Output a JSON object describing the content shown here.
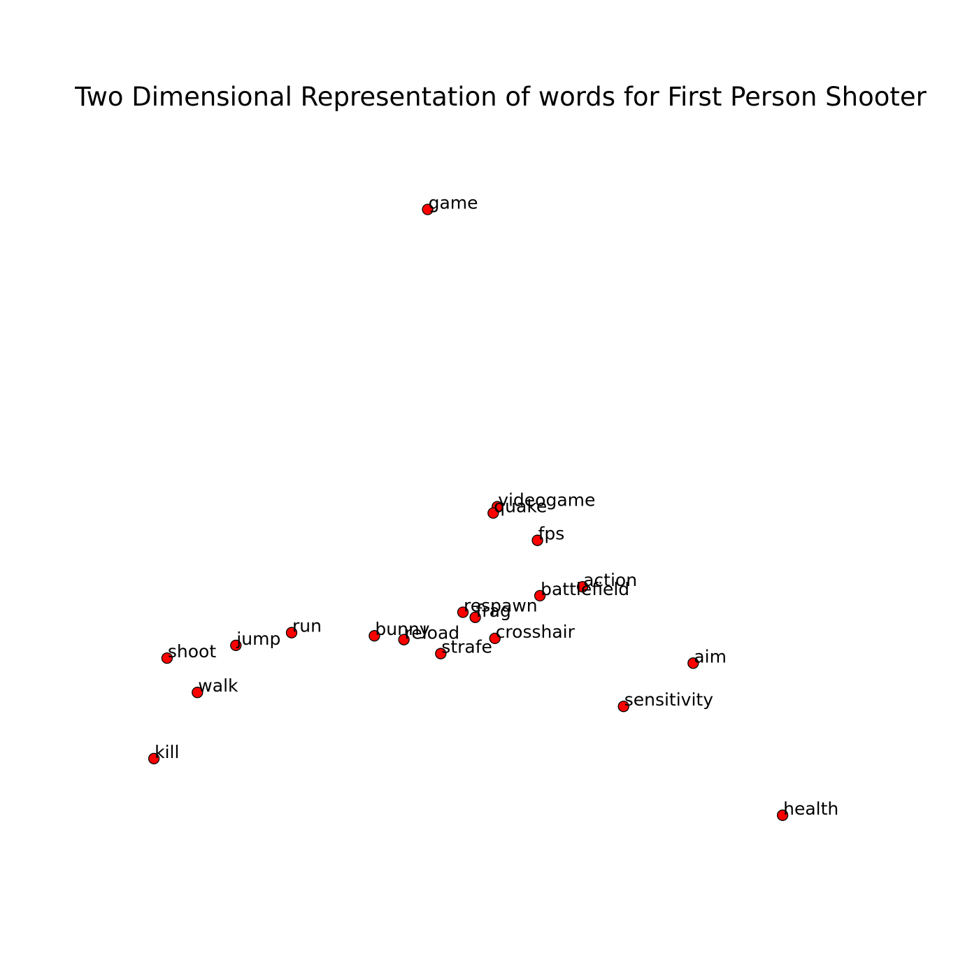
{
  "chart_data": {
    "type": "scatter",
    "title": "Two Dimensional Representation of words for First Person Shooter",
    "xlabel": "",
    "ylabel": "",
    "axes_visible": false,
    "grid": false,
    "xlim": [
      0,
      100
    ],
    "ylim": [
      0,
      100
    ],
    "marker_color": "#ff0000",
    "marker_edge_color": "#000000",
    "label_color": "#000000",
    "points": [
      {
        "label": "game",
        "x": 42.2,
        "y": 93.9
      },
      {
        "label": "videogame",
        "x": 50.7,
        "y": 47.2
      },
      {
        "label": "quake",
        "x": 50.2,
        "y": 46.2
      },
      {
        "label": "fps",
        "x": 55.6,
        "y": 41.9
      },
      {
        "label": "action",
        "x": 61.1,
        "y": 34.6
      },
      {
        "label": "battlefield",
        "x": 55.9,
        "y": 33.2
      },
      {
        "label": "respawn",
        "x": 46.5,
        "y": 30.6
      },
      {
        "label": "frag",
        "x": 48.0,
        "y": 29.8
      },
      {
        "label": "run",
        "x": 25.6,
        "y": 27.4
      },
      {
        "label": "bunny",
        "x": 35.7,
        "y": 26.9
      },
      {
        "label": "reload",
        "x": 39.3,
        "y": 26.3
      },
      {
        "label": "crosshair",
        "x": 50.4,
        "y": 26.5
      },
      {
        "label": "jump",
        "x": 18.8,
        "y": 25.4
      },
      {
        "label": "strafe",
        "x": 43.8,
        "y": 24.1
      },
      {
        "label": "shoot",
        "x": 10.4,
        "y": 23.4
      },
      {
        "label": "aim",
        "x": 74.6,
        "y": 22.6
      },
      {
        "label": "walk",
        "x": 14.1,
        "y": 18.0
      },
      {
        "label": "sensitivity",
        "x": 66.1,
        "y": 15.8
      },
      {
        "label": "kill",
        "x": 8.8,
        "y": 7.6
      },
      {
        "label": "health",
        "x": 85.5,
        "y": -1.3
      }
    ]
  }
}
